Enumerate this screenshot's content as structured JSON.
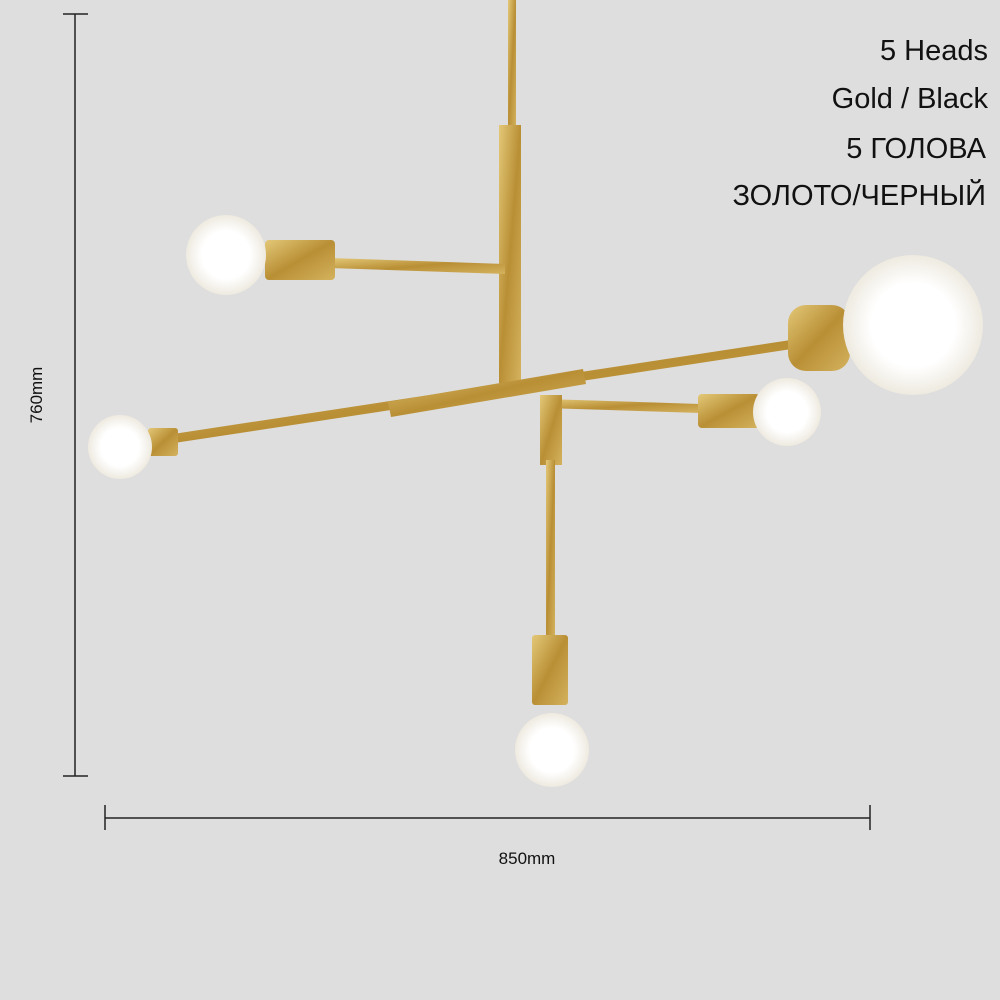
{
  "labels": {
    "heads": "5 Heads",
    "finish": "Gold / Black",
    "heads_ru": "5 ГОЛОВА",
    "finish_ru": "ЗОЛОТО/ЧЕРНЫЙ"
  },
  "dimensions": {
    "height": "760mm",
    "width": "850mm"
  }
}
